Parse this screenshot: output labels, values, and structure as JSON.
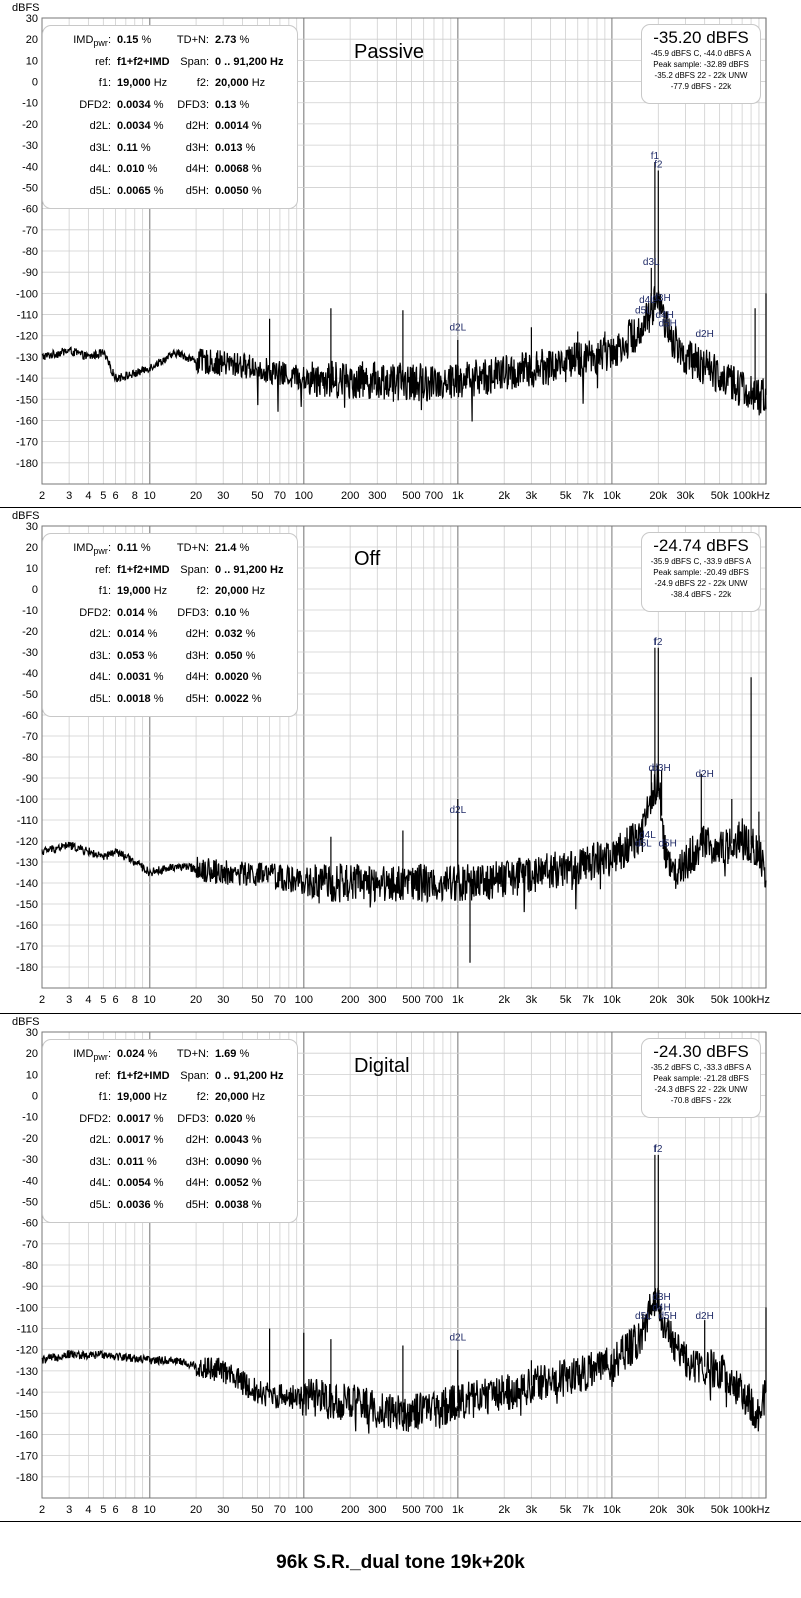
{
  "chart_data": [
    {
      "type": "line",
      "title": "Passive",
      "ylabel": "dBFS",
      "xscale": "log",
      "xlim": [
        2,
        100000
      ],
      "ylim": [
        -190,
        30
      ],
      "x_tick_labels": [
        "2",
        "3",
        "4",
        "5",
        "6",
        "8",
        "10",
        "20",
        "30",
        "50",
        "70",
        "100",
        "200",
        "300",
        "500",
        "700",
        "1k",
        "2k",
        "3k",
        "5k",
        "7k",
        "10k",
        "20k",
        "30k",
        "50k",
        "100kHz"
      ],
      "y_tick_labels": [
        "30",
        "20",
        "10",
        "0",
        "-10",
        "-20",
        "-30",
        "-40",
        "-50",
        "-60",
        "-70",
        "-80",
        "-90",
        "-100",
        "-110",
        "-120",
        "-130",
        "-140",
        "-150",
        "-160",
        "-170",
        "-180"
      ],
      "grid": true,
      "stats": {
        "imd": "0.15",
        "tdn": "2.73",
        "ref": "f1+f2+IMD",
        "span": "0 .. 91,200 Hz",
        "f1": "19,000",
        "f2": "20,000",
        "dfd2": "0.0034",
        "dfd3": "0.13",
        "d2l": "0.0034",
        "d2h": "0.0014",
        "d3l": "0.11",
        "d3h": "0.013",
        "d4l": "0.010",
        "d4h": "0.0068",
        "d5l": "0.0065",
        "d5h": "0.0050"
      },
      "level": {
        "main": "-35.20 dBFS",
        "lines": [
          "-45.9 dBFS C, -44.0 dBFS A",
          "Peak sample: -32.89 dBFS",
          "-35.2 dBFS 22 - 22k UNW",
          "-77.9 dBFS - 22k"
        ]
      },
      "markers": [
        {
          "label": "f1",
          "x": 19000,
          "y": -38
        },
        {
          "label": "f2",
          "x": 20000,
          "y": -42
        },
        {
          "label": "d3L",
          "x": 18000,
          "y": -88
        },
        {
          "label": "d3H",
          "x": 21000,
          "y": -105
        },
        {
          "label": "d4L",
          "x": 17000,
          "y": -106
        },
        {
          "label": "d4H",
          "x": 22000,
          "y": -113
        },
        {
          "label": "d5L",
          "x": 16000,
          "y": -111
        },
        {
          "label": "d5H",
          "x": 23000,
          "y": -117
        },
        {
          "label": "d2L",
          "x": 1000,
          "y": -119
        },
        {
          "label": "d2H",
          "x": 40000,
          "y": -122
        }
      ],
      "spectrum": {
        "floor": [
          [
            2,
            -130
          ],
          [
            3,
            -127
          ],
          [
            4,
            -130
          ],
          [
            5,
            -128
          ],
          [
            6,
            -140
          ],
          [
            8,
            -138
          ],
          [
            10,
            -135
          ],
          [
            15,
            -128
          ],
          [
            20,
            -132
          ],
          [
            30,
            -133
          ],
          [
            50,
            -135
          ],
          [
            70,
            -138
          ],
          [
            100,
            -140
          ],
          [
            200,
            -141
          ],
          [
            300,
            -141
          ],
          [
            500,
            -142
          ],
          [
            700,
            -142
          ],
          [
            1000,
            -141
          ],
          [
            2000,
            -138
          ],
          [
            3000,
            -136
          ],
          [
            5000,
            -133
          ],
          [
            7000,
            -130
          ],
          [
            10000,
            -127
          ],
          [
            15000,
            -118
          ],
          [
            18000,
            -108
          ],
          [
            20000,
            -100
          ],
          [
            22000,
            -115
          ],
          [
            25000,
            -122
          ],
          [
            30000,
            -130
          ],
          [
            40000,
            -135
          ],
          [
            50000,
            -138
          ],
          [
            70000,
            -145
          ],
          [
            90000,
            -150
          ],
          [
            100000,
            -148
          ]
        ],
        "spikes": [
          [
            19000,
            -38
          ],
          [
            20000,
            -42
          ],
          [
            18000,
            -88
          ],
          [
            21000,
            -103
          ],
          [
            100000,
            -100
          ],
          [
            85000,
            -107
          ],
          [
            60,
            -112
          ],
          [
            150,
            -107
          ],
          [
            440,
            -108
          ],
          [
            1000,
            -122
          ],
          [
            3000,
            -116
          ],
          [
            6000,
            -118
          ],
          [
            9000,
            -118
          ]
        ]
      }
    },
    {
      "type": "line",
      "title": "Off",
      "ylabel": "dBFS",
      "xscale": "log",
      "xlim": [
        2,
        100000
      ],
      "ylim": [
        -190,
        30
      ],
      "x_tick_labels": [
        "2",
        "3",
        "4",
        "5",
        "6",
        "8",
        "10",
        "20",
        "30",
        "50",
        "70",
        "100",
        "200",
        "300",
        "500",
        "700",
        "1k",
        "2k",
        "3k",
        "5k",
        "7k",
        "10k",
        "20k",
        "30k",
        "50k",
        "100kHz"
      ],
      "y_tick_labels": [
        "30",
        "20",
        "10",
        "0",
        "-10",
        "-20",
        "-30",
        "-40",
        "-50",
        "-60",
        "-70",
        "-80",
        "-90",
        "-100",
        "-110",
        "-120",
        "-130",
        "-140",
        "-150",
        "-160",
        "-170",
        "-180"
      ],
      "grid": true,
      "stats": {
        "imd": "0.11",
        "tdn": "21.4",
        "ref": "f1+f2+IMD",
        "span": "0 .. 91,200 Hz",
        "f1": "19,000",
        "f2": "20,000",
        "dfd2": "0.014",
        "dfd3": "0.10",
        "d2l": "0.014",
        "d2h": "0.032",
        "d3l": "0.053",
        "d3h": "0.050",
        "d4l": "0.0031",
        "d4h": "0.0020",
        "d5l": "0.0018",
        "d5h": "0.0022"
      },
      "level": {
        "main": "-24.74 dBFS",
        "lines": [
          "-35.9 dBFS C, -33.9 dBFS A",
          "Peak sample: -20.49 dBFS",
          "-24.9 dBFS 22 - 22k UNW",
          "-38.4 dBFS - 22k"
        ]
      },
      "markers": [
        {
          "label": "f",
          "x": 19000,
          "y": -28
        },
        {
          "label": "f2",
          "x": 20000,
          "y": -28
        },
        {
          "label": "d",
          "x": 18000,
          "y": -88
        },
        {
          "label": "d3H",
          "x": 21000,
          "y": -88
        },
        {
          "label": "d2H",
          "x": 40000,
          "y": -91
        },
        {
          "label": "d2L",
          "x": 1000,
          "y": -108
        },
        {
          "label": "d4L",
          "x": 17000,
          "y": -120
        },
        {
          "label": "d5L",
          "x": 16000,
          "y": -124
        },
        {
          "label": "d5H",
          "x": 23000,
          "y": -124
        }
      ],
      "spectrum": {
        "floor": [
          [
            2,
            -125
          ],
          [
            3,
            -122
          ],
          [
            4,
            -125
          ],
          [
            5,
            -128
          ],
          [
            6,
            -125
          ],
          [
            8,
            -130
          ],
          [
            10,
            -135
          ],
          [
            15,
            -132
          ],
          [
            20,
            -133
          ],
          [
            30,
            -135
          ],
          [
            50,
            -136
          ],
          [
            70,
            -137
          ],
          [
            100,
            -140
          ],
          [
            200,
            -140
          ],
          [
            300,
            -140
          ],
          [
            500,
            -140
          ],
          [
            700,
            -140
          ],
          [
            1000,
            -140
          ],
          [
            2000,
            -138
          ],
          [
            3000,
            -136
          ],
          [
            5000,
            -133
          ],
          [
            7000,
            -130
          ],
          [
            10000,
            -128
          ],
          [
            15000,
            -118
          ],
          [
            18000,
            -100
          ],
          [
            20000,
            -90
          ],
          [
            22000,
            -125
          ],
          [
            25000,
            -135
          ],
          [
            30000,
            -130
          ],
          [
            40000,
            -120
          ],
          [
            50000,
            -125
          ],
          [
            70000,
            -118
          ],
          [
            90000,
            -125
          ],
          [
            100000,
            -138
          ]
        ],
        "spikes": [
          [
            19000,
            -28
          ],
          [
            20000,
            -28
          ],
          [
            18000,
            -86
          ],
          [
            21000,
            -86
          ],
          [
            38000,
            -88
          ],
          [
            80000,
            -42
          ],
          [
            60000,
            -100
          ],
          [
            90000,
            -106
          ],
          [
            1000,
            -100
          ],
          [
            150,
            -118
          ],
          [
            440,
            -115
          ],
          [
            1200,
            -178
          ]
        ]
      }
    },
    {
      "type": "line",
      "title": "Digital",
      "ylabel": "dBFS",
      "xscale": "log",
      "xlim": [
        2,
        100000
      ],
      "ylim": [
        -190,
        30
      ],
      "x_tick_labels": [
        "2",
        "3",
        "4",
        "5",
        "6",
        "8",
        "10",
        "20",
        "30",
        "50",
        "70",
        "100",
        "200",
        "300",
        "500",
        "700",
        "1k",
        "2k",
        "3k",
        "5k",
        "7k",
        "10k",
        "20k",
        "30k",
        "50k",
        "100kHz"
      ],
      "y_tick_labels": [
        "30",
        "20",
        "10",
        "0",
        "-10",
        "-20",
        "-30",
        "-40",
        "-50",
        "-60",
        "-70",
        "-80",
        "-90",
        "-100",
        "-110",
        "-120",
        "-130",
        "-140",
        "-150",
        "-160",
        "-170",
        "-180"
      ],
      "grid": true,
      "stats": {
        "imd": "0.024",
        "tdn": "1.69",
        "ref": "f1+f2+IMD",
        "span": "0 .. 91,200 Hz",
        "f1": "19,000",
        "f2": "20,000",
        "dfd2": "0.0017",
        "dfd3": "0.020",
        "d2l": "0.0017",
        "d2h": "0.0043",
        "d3l": "0.011",
        "d3h": "0.0090",
        "d4l": "0.0054",
        "d4h": "0.0052",
        "d5l": "0.0036",
        "d5h": "0.0038"
      },
      "level": {
        "main": "-24.30 dBFS",
        "lines": [
          "-35.2 dBFS C, -33.3 dBFS A",
          "Peak sample: -21.28 dBFS",
          "-24.3 dBFS 22 - 22k UNW",
          "-70.8 dBFS - 22k"
        ]
      },
      "markers": [
        {
          "label": "f",
          "x": 19000,
          "y": -28
        },
        {
          "label": "f2",
          "x": 20000,
          "y": -28
        },
        {
          "label": "d3H",
          "x": 21000,
          "y": -98
        },
        {
          "label": "d4H",
          "x": 21000,
          "y": -103
        },
        {
          "label": "d5L",
          "x": 16000,
          "y": -107
        },
        {
          "label": "d5H",
          "x": 23000,
          "y": -107
        },
        {
          "label": "d2L",
          "x": 1000,
          "y": -117
        },
        {
          "label": "d2H",
          "x": 40000,
          "y": -107
        }
      ],
      "spectrum": {
        "floor": [
          [
            2,
            -125
          ],
          [
            3,
            -122
          ],
          [
            4,
            -123
          ],
          [
            5,
            -122
          ],
          [
            6,
            -123
          ],
          [
            8,
            -124
          ],
          [
            10,
            -125
          ],
          [
            15,
            -125
          ],
          [
            20,
            -128
          ],
          [
            30,
            -130
          ],
          [
            50,
            -140
          ],
          [
            70,
            -142
          ],
          [
            100,
            -142
          ],
          [
            200,
            -145
          ],
          [
            300,
            -148
          ],
          [
            500,
            -150
          ],
          [
            700,
            -148
          ],
          [
            1000,
            -145
          ],
          [
            2000,
            -140
          ],
          [
            3000,
            -137
          ],
          [
            5000,
            -133
          ],
          [
            7000,
            -130
          ],
          [
            10000,
            -127
          ],
          [
            15000,
            -115
          ],
          [
            18000,
            -100
          ],
          [
            20000,
            -98
          ],
          [
            22000,
            -108
          ],
          [
            25000,
            -118
          ],
          [
            30000,
            -125
          ],
          [
            40000,
            -128
          ],
          [
            50000,
            -130
          ],
          [
            70000,
            -140
          ],
          [
            90000,
            -152
          ],
          [
            100000,
            -140
          ]
        ],
        "spikes": [
          [
            19000,
            -28
          ],
          [
            20000,
            -28
          ],
          [
            40000,
            -106
          ],
          [
            100000,
            -100
          ],
          [
            60,
            -110
          ],
          [
            100,
            -112
          ],
          [
            150,
            -115
          ],
          [
            440,
            -118
          ],
          [
            1000,
            -120
          ],
          [
            3000,
            -125
          ],
          [
            6000,
            -124
          ],
          [
            9000,
            -128
          ]
        ]
      }
    }
  ],
  "caption": "96k S.R._dual tone 19k+20k",
  "labels": {
    "ylabel": "dBFS",
    "imd_key": "IMD",
    "imd_sub": "pwr",
    "tdn_key": "TD+N:",
    "ref_key": "ref:",
    "span_key": "Span:",
    "f1_key": "f1:",
    "f2_key": "f2:",
    "dfd2_key": "DFD2:",
    "dfd3_key": "DFD3:",
    "d2l_key": "d2L:",
    "d2h_key": "d2H:",
    "d3l_key": "d3L:",
    "d3h_key": "d3H:",
    "d4l_key": "d4L:",
    "d4h_key": "d4H:",
    "d5l_key": "d5L:",
    "d5h_key": "d5H:",
    "pct": "%",
    "hz": "Hz"
  }
}
